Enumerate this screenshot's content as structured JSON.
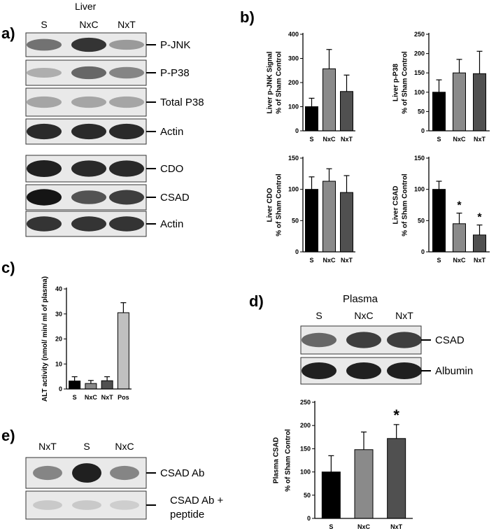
{
  "panel_labels": {
    "a": "a)",
    "b": "b)",
    "c": "c)",
    "d": "d)",
    "e": "e)"
  },
  "blots": {
    "liver": {
      "title": "Liver",
      "lanes": [
        "S",
        "NxC",
        "NxT"
      ],
      "rows": [
        {
          "label": "P-JNK",
          "intensity": [
            0.55,
            0.85,
            0.35
          ]
        },
        {
          "label": "P-P38",
          "intensity": [
            0.25,
            0.6,
            0.45
          ]
        },
        {
          "label": "Total P38",
          "intensity": [
            0.3,
            0.3,
            0.3
          ]
        },
        {
          "label": "Actin",
          "intensity": [
            0.9,
            0.9,
            0.9
          ]
        },
        {
          "label": "CDO",
          "intensity": [
            0.95,
            0.9,
            0.9
          ]
        },
        {
          "label": "CSAD",
          "intensity": [
            1.0,
            0.7,
            0.8
          ]
        },
        {
          "label": "Actin",
          "intensity": [
            0.85,
            0.85,
            0.85
          ]
        }
      ]
    },
    "plasma": {
      "title": "Plasma",
      "lanes": [
        "S",
        "NxC",
        "NxT"
      ],
      "rows": [
        {
          "label": "CSAD",
          "intensity": [
            0.6,
            0.8,
            0.8
          ]
        },
        {
          "label": "Albumin",
          "intensity": [
            0.95,
            0.95,
            0.95
          ]
        }
      ]
    },
    "antibody": {
      "lanes": [
        "NxT",
        "S",
        "NxC"
      ],
      "rows": [
        {
          "label": "CSAD Ab",
          "intensity": [
            0.45,
            0.95,
            0.45
          ]
        },
        {
          "label_lines": [
            "CSAD Ab +",
            "peptide"
          ],
          "intensity": [
            0.12,
            0.12,
            0.1
          ]
        }
      ]
    }
  },
  "chart_data": [
    {
      "type": "bar",
      "categories": [
        "S",
        "NxC",
        "NxT"
      ],
      "values": [
        100,
        257,
        163
      ],
      "errors": [
        35,
        80,
        68
      ],
      "ylabel_lines": [
        "Liver p-JNK Signal",
        "% of Sham Control"
      ],
      "ylim": [
        0,
        400
      ],
      "yticks": [
        0,
        100,
        200,
        300,
        400
      ],
      "colors": [
        "#000000",
        "#8a8a8a",
        "#505050"
      ],
      "significance": [
        "",
        "",
        ""
      ]
    },
    {
      "type": "bar",
      "categories": [
        "S",
        "NxC",
        "NxT"
      ],
      "values": [
        100,
        150,
        148
      ],
      "errors": [
        32,
        35,
        58
      ],
      "ylabel_lines": [
        "Liver p-P38",
        "% of Sham Control"
      ],
      "ylim": [
        0,
        250
      ],
      "yticks": [
        0,
        50,
        100,
        150,
        200,
        250
      ],
      "colors": [
        "#000000",
        "#8a8a8a",
        "#505050"
      ],
      "significance": [
        "",
        "",
        ""
      ]
    },
    {
      "type": "bar",
      "categories": [
        "S",
        "NxC",
        "NxT"
      ],
      "values": [
        100,
        113,
        95
      ],
      "errors": [
        20,
        20,
        27
      ],
      "ylabel_lines": [
        "Liver CDO",
        "% of Sham Control"
      ],
      "ylim": [
        0,
        150
      ],
      "yticks": [
        0,
        50,
        100,
        150
      ],
      "colors": [
        "#000000",
        "#8a8a8a",
        "#505050"
      ],
      "significance": [
        "",
        "",
        ""
      ]
    },
    {
      "type": "bar",
      "categories": [
        "S",
        "NxC",
        "NxT"
      ],
      "values": [
        100,
        45,
        27
      ],
      "errors": [
        13,
        17,
        16
      ],
      "ylabel_lines": [
        "Liver CSAD",
        "% of Sham Control"
      ],
      "ylim": [
        0,
        150
      ],
      "yticks": [
        0,
        50,
        100,
        150
      ],
      "colors": [
        "#000000",
        "#8a8a8a",
        "#505050"
      ],
      "significance": [
        "",
        "*",
        "*"
      ]
    },
    {
      "type": "bar",
      "categories": [
        "S",
        "NxC",
        "NxT",
        "Pos"
      ],
      "values": [
        3.2,
        2.2,
        3.3,
        30.5
      ],
      "errors": [
        1.7,
        1.2,
        1.6,
        4.0
      ],
      "ylabel_lines": [
        "ALT activity (nmol/ min/ ml of plasma)"
      ],
      "ylim": [
        0,
        40
      ],
      "yticks": [
        0,
        10,
        20,
        30,
        40
      ],
      "colors": [
        "#000000",
        "#8a8a8a",
        "#505050",
        "#c0c0c0"
      ],
      "significance": [
        "",
        "",
        "",
        ""
      ]
    },
    {
      "type": "bar",
      "categories": [
        "S",
        "NxC",
        "NxT"
      ],
      "values": [
        100,
        148,
        172
      ],
      "errors": [
        35,
        38,
        30
      ],
      "ylabel_lines": [
        "Plasma CSAD",
        "% of Sham Control"
      ],
      "ylim": [
        0,
        250
      ],
      "yticks": [
        0,
        50,
        100,
        150,
        200,
        250
      ],
      "colors": [
        "#000000",
        "#8a8a8a",
        "#505050"
      ],
      "significance": [
        "",
        "",
        "*"
      ]
    }
  ]
}
